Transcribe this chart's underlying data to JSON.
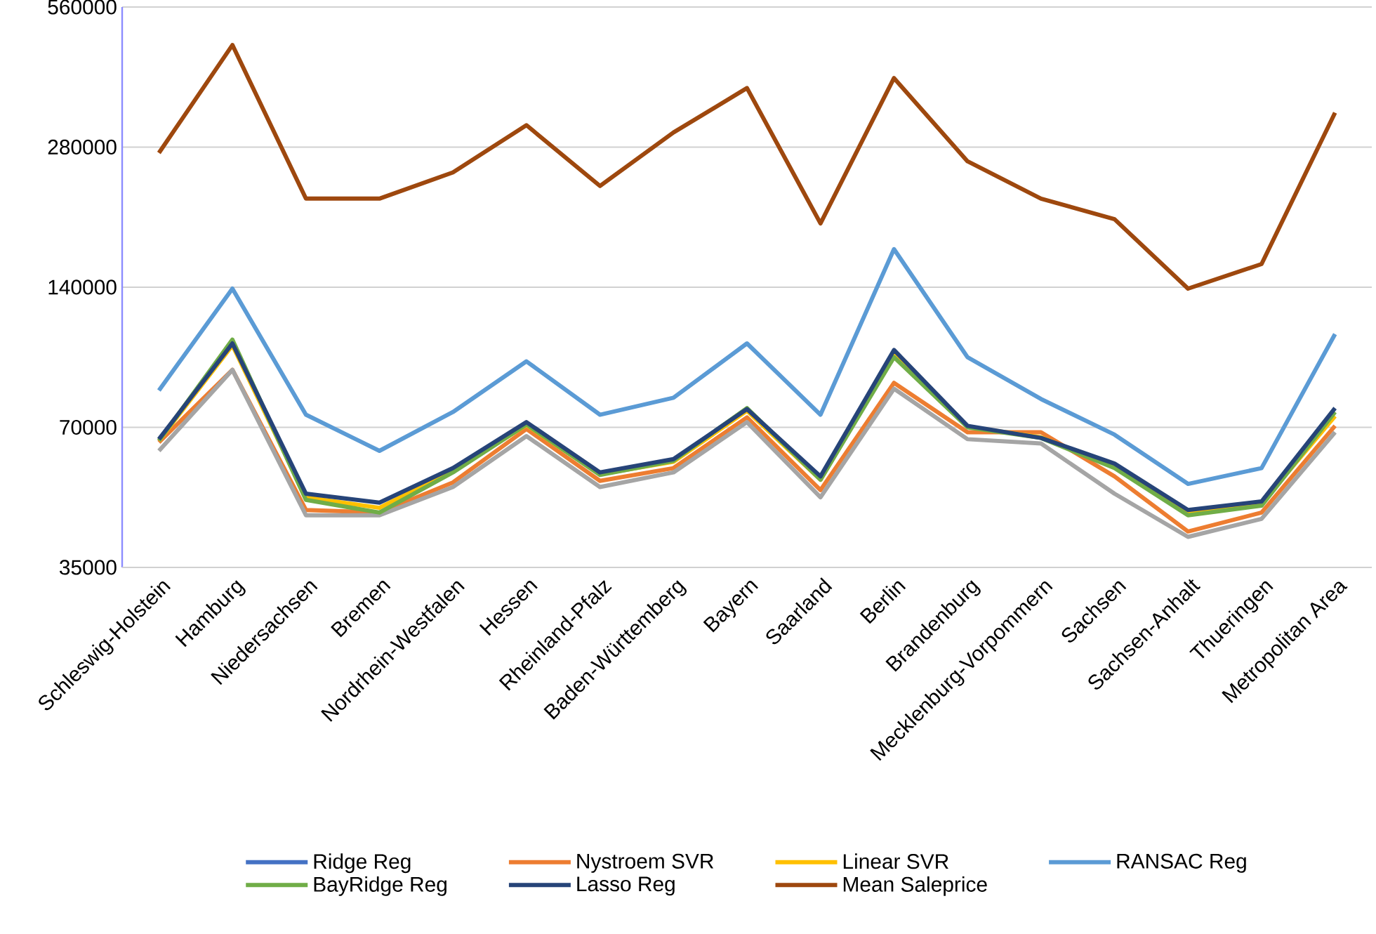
{
  "chart_data": {
    "type": "line",
    "log": "y",
    "grid": "y",
    "legend": "bottom",
    "line_style": "solid",
    "marker": "none",
    "categories": [
      "Schleswig-Holstein",
      "Hamburg",
      "Niedersachsen",
      "Bremen",
      "Nordrhein-Westfalen",
      "Hessen",
      "Rheinland-Pfalz",
      "Baden-Württemberg",
      "Bayern",
      "Saarland",
      "Berlin",
      "Brandenburg",
      "Mecklenburg-Vorpommern",
      "Sachsen",
      "Sachsen-Anhalt",
      "Thueringen",
      "Metropolitan Area"
    ],
    "ylim": [
      35000,
      560000
    ],
    "yticks": [
      35000,
      70000,
      140000,
      280000,
      560000
    ],
    "series": [
      {
        "name": "Ridge Reg",
        "color": "#4472c4",
        "values": [
          null,
          null,
          null,
          null,
          null,
          null,
          null,
          null,
          null,
          null,
          null,
          null,
          null,
          null,
          null,
          null,
          null
        ]
      },
      {
        "name": "Nystroem SVR",
        "color": "#ed7d31",
        "values": [
          65000,
          93000,
          46500,
          45900,
          53300,
          69400,
          53700,
          57200,
          73500,
          51300,
          87200,
          68300,
          68300,
          54900,
          41800,
          45900,
          70500
        ]
      },
      {
        "color": "#a5a5a5",
        "values": [
          62300,
          93000,
          45300,
          45300,
          52100,
          67000,
          52100,
          56000,
          71800,
          49500,
          84700,
          66000,
          64600,
          50400,
          40700,
          44500,
          68300
        ]
      },
      {
        "name": "Linear SVR",
        "color": "#ffc000",
        "values": [
          65500,
          105000,
          49500,
          47000,
          56500,
          70800,
          55500,
          59000,
          76000,
          54000,
          100000,
          70200,
          66600,
          57800,
          45800,
          48000,
          74000
        ]
      },
      {
        "name": "RANSAC Reg",
        "color": "#5b9bd5",
        "values": [
          84000,
          139000,
          74500,
          62300,
          75500,
          97000,
          74500,
          81000,
          106000,
          74500,
          169000,
          99000,
          80500,
          67500,
          52900,
          57200,
          111000
        ]
      },
      {
        "name": "BayRidge Reg",
        "color": "#70ad47",
        "values": [
          65500,
          108000,
          48900,
          45900,
          56000,
          71000,
          55300,
          59300,
          77000,
          54000,
          99000,
          70000,
          66400,
          57200,
          45300,
          47500,
          75500
        ]
      },
      {
        "name": "Lasso Reg",
        "color": "#264478",
        "values": [
          66000,
          106000,
          50400,
          48200,
          57200,
          71800,
          56000,
          59800,
          76600,
          54900,
          102600,
          70500,
          66400,
          58500,
          46500,
          48500,
          77000
        ]
      },
      {
        "name": "Mean Saleprice",
        "color": "#9e480e",
        "values": [
          272000,
          464000,
          217000,
          217000,
          247000,
          312000,
          231000,
          301000,
          375000,
          192000,
          394000,
          261000,
          217000,
          196000,
          139000,
          157000,
          332000
        ]
      }
    ]
  }
}
